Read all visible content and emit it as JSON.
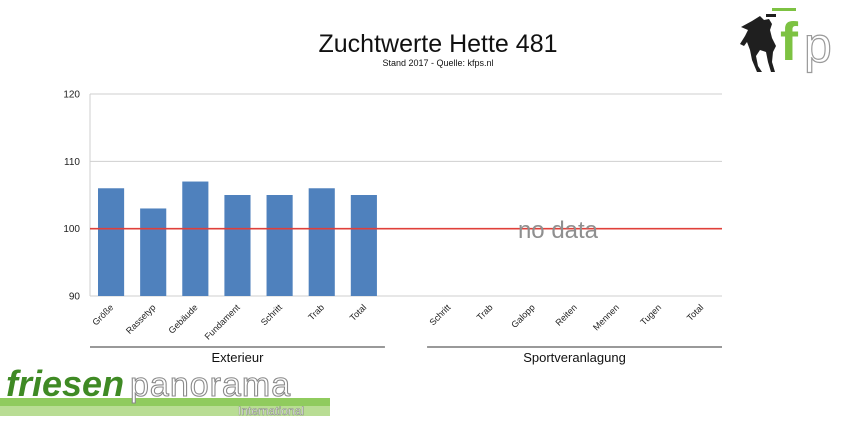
{
  "chart_data": {
    "type": "bar",
    "title": "Zuchtwerte Hette 481",
    "subtitle": "Stand 2017 - Quelle: kfps.nl",
    "ylim": [
      90,
      120
    ],
    "yticks": [
      90,
      100,
      110,
      120
    ],
    "grid": true,
    "reference_line": {
      "value": 100,
      "color": "#e0403a"
    },
    "bar_color": "#4f81bd",
    "groups": [
      {
        "label": "Exterieur",
        "categories": [
          "Größe",
          "Rassetyp",
          "Gebäude",
          "Fundament",
          "Schritt",
          "Trab",
          "Total"
        ],
        "values": [
          106,
          103,
          107,
          105,
          105,
          106,
          105
        ]
      },
      {
        "label": "Sportveranlagung",
        "categories": [
          "Schritt",
          "Trab",
          "Galopp",
          "Reiten",
          "Mennen",
          "Tugen",
          "Total"
        ],
        "values": [
          null,
          null,
          null,
          null,
          null,
          null,
          null
        ],
        "annotation": "no data"
      }
    ]
  },
  "logo_tr": {
    "letters": "fp",
    "icon": "horse-silhouette-icon"
  },
  "logo_bl": {
    "part1": "friesen",
    "part2": "panorama",
    "part3": "International"
  }
}
